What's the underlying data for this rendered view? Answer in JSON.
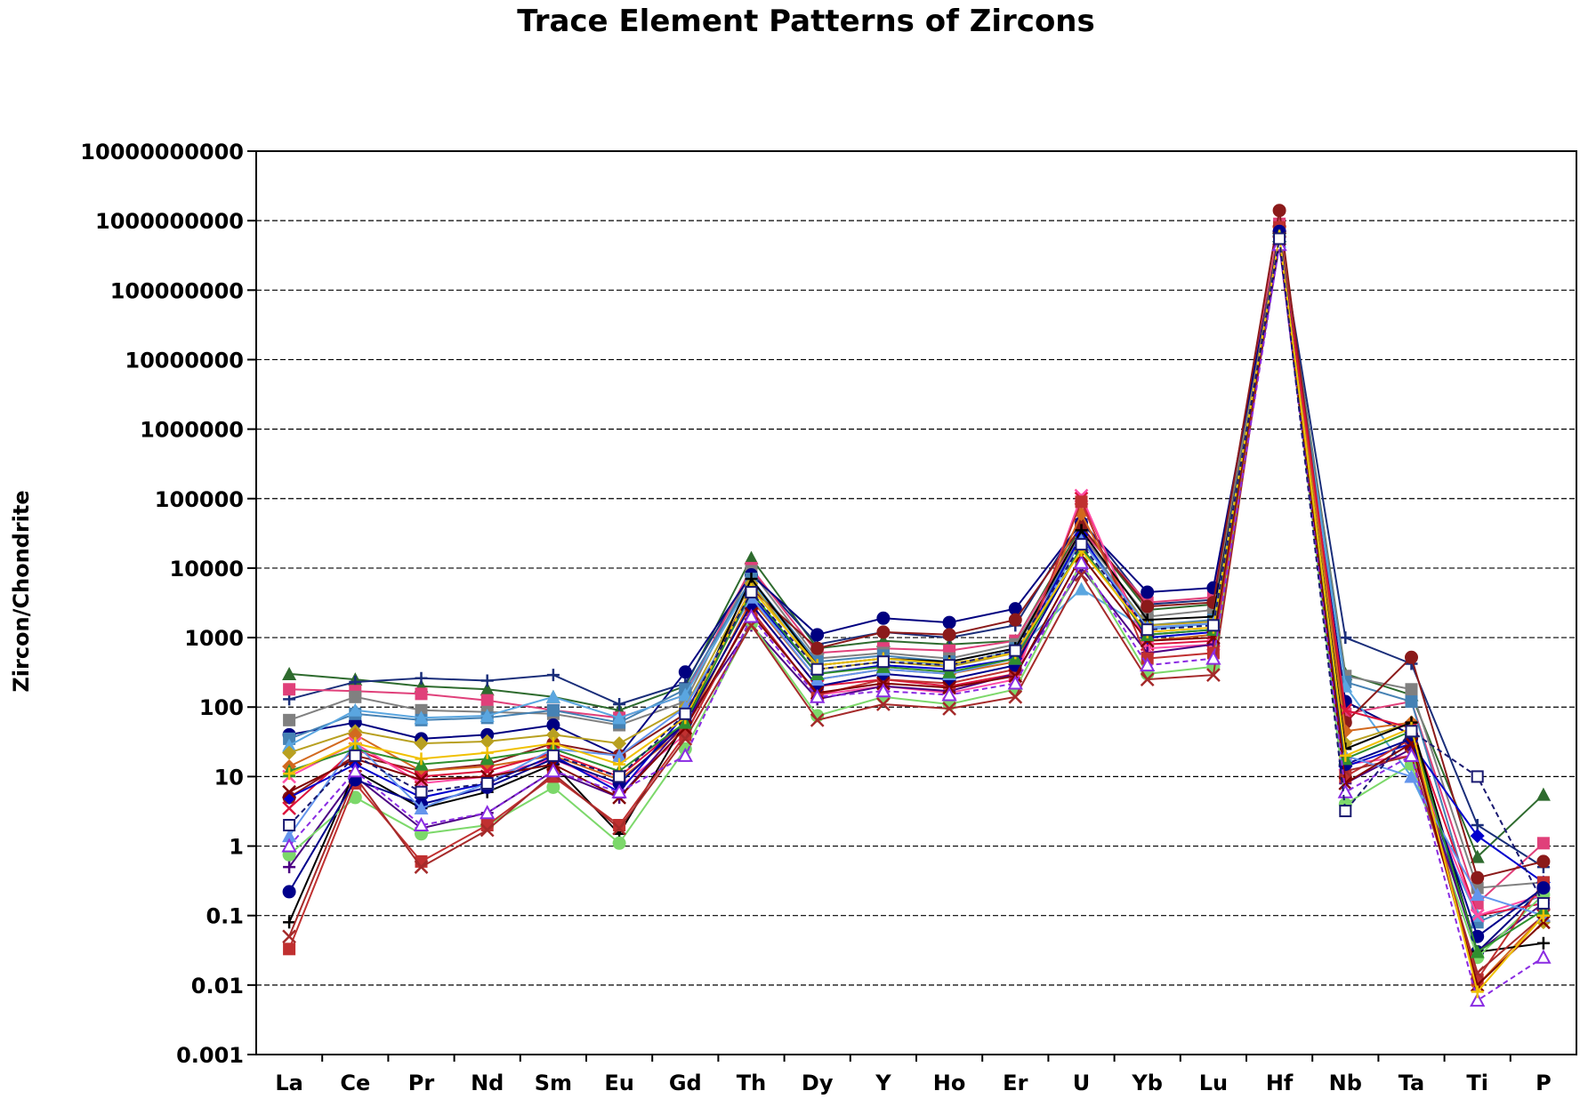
{
  "chart_data": {
    "type": "line",
    "title": "Trace Element Patterns of Zircons",
    "ylabel": "Zircon/Chondrite",
    "xlabel": "",
    "yscale": "log",
    "ylim": [
      0.001,
      10000000000
    ],
    "yticks": [
      {
        "value": 0.001,
        "label": "0.001"
      },
      {
        "value": 0.01,
        "label": "0.01"
      },
      {
        "value": 0.1,
        "label": "0.1"
      },
      {
        "value": 1,
        "label": "1"
      },
      {
        "value": 10,
        "label": "10"
      },
      {
        "value": 100,
        "label": "100"
      },
      {
        "value": 1000,
        "label": "1000"
      },
      {
        "value": 10000,
        "label": "10000"
      },
      {
        "value": 100000,
        "label": "100000"
      },
      {
        "value": 1000000,
        "label": "1000000"
      },
      {
        "value": 10000000,
        "label": "10000000"
      },
      {
        "value": 100000000,
        "label": "100000000"
      },
      {
        "value": 1000000000,
        "label": "1000000000"
      },
      {
        "value": 10000000000,
        "label": "10000000000"
      }
    ],
    "grid": "horizontal-dashed",
    "categories": [
      "La",
      "Ce",
      "Pr",
      "Nd",
      "Sm",
      "Eu",
      "Gd",
      "Th",
      "Dy",
      "Y",
      "Ho",
      "Er",
      "U",
      "Yb",
      "Lu",
      "Hf",
      "Nb",
      "Ta",
      "Ti",
      "P"
    ],
    "series": [
      {
        "color": "#2e6b2e",
        "marker": "triangle",
        "values": [
          300,
          250,
          200,
          180,
          140,
          90,
          200,
          14000,
          700,
          900,
          800,
          900,
          40000,
          2500,
          3000,
          800000000,
          300,
          150,
          0.7,
          5.5
        ]
      },
      {
        "color": "#1a2e7a",
        "marker": "plus",
        "values": [
          130,
          230,
          260,
          240,
          290,
          110,
          220,
          9000,
          800,
          1200,
          1000,
          1500,
          50000,
          3000,
          3500,
          700000000,
          1000,
          420,
          2.0,
          0.5
        ]
      },
      {
        "color": "#e0407a",
        "marker": "square",
        "values": [
          180,
          170,
          155,
          125,
          90,
          70,
          150,
          10000,
          600,
          700,
          650,
          900,
          35000,
          3200,
          3800,
          900000000,
          80,
          120,
          0.15,
          1.1
        ]
      },
      {
        "color": "#808080",
        "marker": "square",
        "values": [
          65,
          140,
          90,
          85,
          80,
          55,
          120,
          9000,
          500,
          600,
          500,
          800,
          30000,
          2000,
          2500,
          750000000,
          280,
          180,
          0.25,
          0.3
        ]
      },
      {
        "color": "#000080",
        "marker": "circle",
        "values": [
          40,
          60,
          35,
          40,
          55,
          20,
          320,
          8000,
          1100,
          1900,
          1650,
          2600,
          45000,
          4500,
          5200,
          600000000,
          120,
          40,
          0.03,
          0.25
        ]
      },
      {
        "color": "#4682b4",
        "marker": "square",
        "values": [
          35,
          80,
          65,
          70,
          90,
          60,
          180,
          7000,
          450,
          550,
          450,
          700,
          28000,
          1500,
          1800,
          650000000,
          230,
          120,
          0.08,
          0.2
        ]
      },
      {
        "color": "#5aa6e0",
        "marker": "triangle",
        "values": [
          28,
          90,
          70,
          75,
          140,
          70,
          150,
          6500,
          400,
          500,
          400,
          650,
          5000,
          1300,
          1600,
          500000000,
          200,
          10,
          0.1,
          0.15
        ]
      },
      {
        "color": "#8b1a1a",
        "marker": "circle",
        "values": [
          5,
          20,
          12,
          15,
          30,
          20,
          80,
          5000,
          700,
          1200,
          1100,
          1800,
          40000,
          2800,
          3200,
          1400000000,
          60,
          520,
          0.35,
          0.6
        ]
      },
      {
        "color": "#b8a020",
        "marker": "diamond",
        "values": [
          22,
          45,
          30,
          32,
          40,
          30,
          100,
          6000,
          350,
          450,
          380,
          600,
          25000,
          1500,
          1700,
          700000000,
          30,
          60,
          0.01,
          0.08
        ]
      },
      {
        "color": "#d2691e",
        "marker": "diamond",
        "values": [
          14,
          40,
          12,
          14,
          20,
          9,
          50,
          3500,
          250,
          350,
          300,
          450,
          60000,
          900,
          1100,
          800000000,
          45,
          60,
          0.01,
          0.1
        ]
      },
      {
        "color": "#dc143c",
        "marker": "cross",
        "values": [
          3.5,
          25,
          10,
          12,
          22,
          10,
          60,
          3000,
          200,
          250,
          200,
          300,
          100000,
          800,
          900,
          700000000,
          90,
          50,
          0.1,
          0.15
        ]
      },
      {
        "color": "#ff4da6",
        "marker": "cross",
        "values": [
          10,
          30,
          8,
          10,
          18,
          7,
          40,
          2500,
          150,
          200,
          160,
          250,
          110000,
          700,
          800,
          600000000,
          15,
          20,
          0.1,
          0.2
        ]
      },
      {
        "color": "#0000cd",
        "marker": "diamond",
        "values": [
          5,
          15,
          5,
          8,
          20,
          6,
          80,
          4000,
          300,
          400,
          350,
          500,
          30000,
          1000,
          1200,
          500000000,
          14,
          30,
          1.4,
          0.3
        ]
      },
      {
        "color": "#4b0082",
        "marker": "plus",
        "values": [
          0.5,
          10,
          1.8,
          3,
          12,
          5,
          60,
          1500,
          130,
          200,
          170,
          300,
          10000,
          600,
          800,
          450000000,
          8,
          25,
          0.03,
          0.15
        ]
      },
      {
        "color": "#000000",
        "marker": "plus",
        "values": [
          0.08,
          12,
          3.5,
          6,
          15,
          1.5,
          60,
          7000,
          400,
          500,
          450,
          700,
          35000,
          1800,
          2000,
          500000000,
          25,
          60,
          0.03,
          0.04
        ]
      },
      {
        "color": "#7cd86a",
        "marker": "circle",
        "values": [
          0.75,
          5,
          1.5,
          2,
          7,
          1.1,
          25,
          1600,
          75,
          140,
          110,
          180,
          12000,
          300,
          380,
          650000000,
          4,
          15,
          0.025,
          0.2
        ]
      },
      {
        "color": "#c03030",
        "marker": "square",
        "values": [
          0.033,
          8,
          0.6,
          2,
          10,
          2,
          40,
          2500,
          150,
          250,
          220,
          350,
          90000,
          500,
          600,
          800000000,
          10,
          35,
          0.012,
          0.3
        ]
      },
      {
        "color": "#a52a2a",
        "marker": "cross",
        "values": [
          0.05,
          10,
          0.5,
          1.7,
          11,
          1.8,
          35,
          1500,
          65,
          110,
          95,
          140,
          8000,
          250,
          290,
          700000000,
          12,
          20,
          0.015,
          0.1
        ]
      },
      {
        "color": "#00008b",
        "marker": "circle",
        "values": [
          0.22,
          9,
          4,
          7,
          18,
          8,
          60,
          3000,
          200,
          300,
          250,
          400,
          20000,
          1100,
          1300,
          700000000,
          15,
          35,
          0.05,
          0.25
        ]
      },
      {
        "color": "#6495ed",
        "marker": "triangle",
        "values": [
          1.4,
          30,
          3.5,
          8,
          25,
          20,
          100,
          3800,
          250,
          350,
          300,
          500,
          25000,
          1400,
          1600,
          600000000,
          20,
          10,
          0.2,
          0.1
        ]
      },
      {
        "color": "#800000",
        "marker": "cross",
        "values": [
          6,
          18,
          9,
          10,
          15,
          5,
          50,
          2200,
          160,
          220,
          190,
          280,
          15000,
          900,
          1000,
          550000000,
          8,
          30,
          0.01,
          0.08
        ]
      },
      {
        "color": "#2f8f2f",
        "marker": "triangle",
        "values": [
          12,
          25,
          15,
          18,
          25,
          12,
          60,
          4500,
          300,
          380,
          320,
          500,
          20000,
          1100,
          1300,
          600000000,
          18,
          45,
          0.03,
          0.12
        ]
      },
      {
        "color": "#8a2be2",
        "marker": "triangle-open",
        "values": [
          1,
          12,
          2,
          3,
          12,
          6,
          20,
          2000,
          140,
          170,
          150,
          220,
          12000,
          400,
          500,
          450000000,
          6,
          20,
          0.006,
          0.025
        ]
      },
      {
        "color": "#f0c000",
        "marker": "plus",
        "values": [
          11,
          30,
          18,
          22,
          30,
          15,
          70,
          5000,
          400,
          500,
          420,
          600,
          18000,
          1200,
          1400,
          600000000,
          20,
          50,
          0.008,
          0.1
        ]
      },
      {
        "color": "#191970",
        "marker": "square-open",
        "values": [
          2,
          20,
          6,
          8,
          20,
          10,
          80,
          4500,
          350,
          450,
          400,
          650,
          22000,
          1300,
          1500,
          550000000,
          3.2,
          45,
          10,
          0.15
        ]
      }
    ]
  }
}
